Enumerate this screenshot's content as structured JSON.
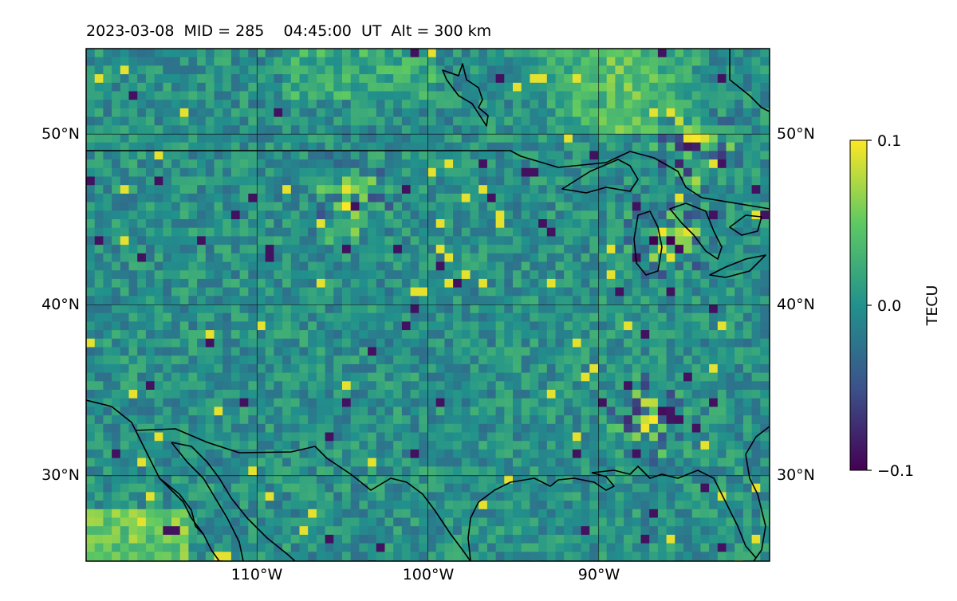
{
  "title": "2023-03-08  MID = 285    04:45:00  UT  Alt = 300 km",
  "map": {
    "lon_range": [
      -120,
      -80
    ],
    "lat_range": [
      25,
      55
    ],
    "meridians": [
      -110,
      -100,
      -90
    ],
    "parallels": [
      30,
      40,
      50
    ],
    "lon_labels": [
      "110°W",
      "100°W",
      "90°W"
    ],
    "lat_labels": [
      "30°N",
      "40°N",
      "50°N"
    ],
    "grid": true,
    "features": [
      "coastlines",
      "country-borders",
      "great-lakes"
    ],
    "hotspots": [
      {
        "lon": -86.0,
        "lat": 44.0
      },
      {
        "lon": -87.0,
        "lat": 33.5
      },
      {
        "lon": -84.5,
        "lat": 49.0
      },
      {
        "lon": -104.5,
        "lat": 46.2
      }
    ]
  },
  "colorbar": {
    "label": "TECU",
    "ticks": [
      "0.1",
      "0.0",
      "−0.1"
    ],
    "min": -0.1,
    "max": 0.1,
    "colormap": "viridis",
    "colors": [
      "#440154",
      "#3b528b",
      "#21918c",
      "#5ec962",
      "#fde725"
    ]
  }
}
